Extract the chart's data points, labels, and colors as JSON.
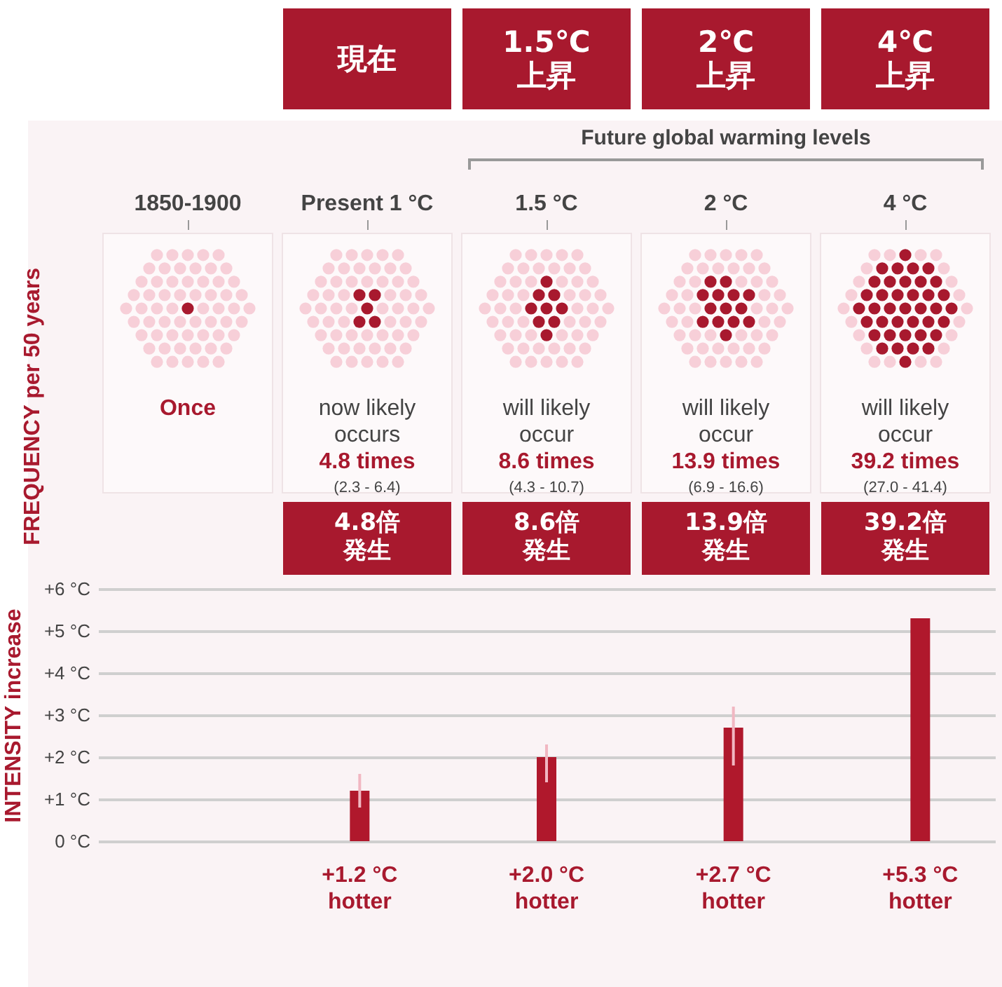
{
  "chart_data": [
    {
      "type": "other",
      "ylabel": "FREQUENCY per 50 years",
      "categories": [
        "1850-1900",
        "Present 1 °C",
        "1.5 °C",
        "2 °C",
        "4 °C"
      ],
      "values": [
        null,
        4.8,
        8.6,
        13.9,
        39.2
      ],
      "value_labels": [
        "Once",
        "now likely\noccurs\n4.8 times\n(2.3 - 6.4)",
        "will likely\noccur\n8.6 times\n(4.3 - 10.7)",
        "will likely\noccur\n13.9 times\n(6.9 - 16.6)",
        "will likely\noccur\n39.2 times\n(27.0 - 41.4)"
      ],
      "annotations": [
        "Future global warming levels",
        "現在",
        "1.5℃",
        "上昇",
        "2℃",
        "上昇",
        "4℃",
        "上昇"
      ]
    },
    {
      "type": "bar",
      "ylabel": "INTENSITY increase",
      "categories": [
        null,
        null,
        null,
        null,
        null
      ],
      "values": [
        null,
        1.2,
        2.0,
        2.7,
        5.3
      ],
      "color": "#b0182c",
      "errors": [
        null,
        [
          0.8,
          1.6
        ],
        [
          1.4,
          2.3
        ],
        [
          1.8,
          3.2
        ],
        null
      ],
      "value_labels": [
        null,
        "+1.2 °C\nhotter",
        "+2.0 °C\nhotter",
        "+2.7 °C\nhotter",
        "+5.3 °C\nhotter"
      ],
      "ylim": [
        0,
        6
      ],
      "yticks": [
        {
          "value": 0,
          "label": "0 °C"
        },
        {
          "value": 1,
          "label": "+1 °C"
        },
        {
          "value": 2,
          "label": "+2 °C"
        },
        {
          "value": 3,
          "label": "+3 °C"
        },
        {
          "value": 4,
          "label": "+4 °C"
        },
        {
          "value": 5,
          "label": "+5 °C"
        },
        {
          "value": 6,
          "label": "+6 °C"
        }
      ],
      "grid": "y",
      "tick_labels": "y",
      "annotations": [
        "4.8倍",
        "発生",
        "8.6倍",
        "発生",
        "13.9倍",
        "発生",
        "39.2倍",
        "発生"
      ]
    }
  ]
}
